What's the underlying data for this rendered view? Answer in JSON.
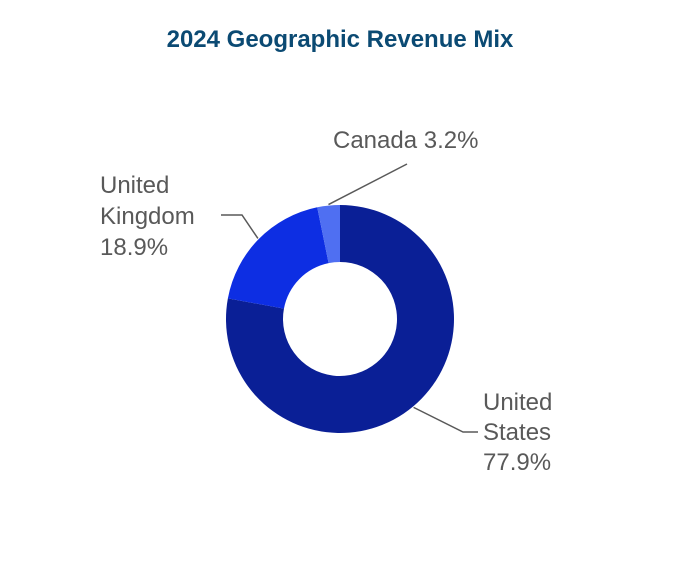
{
  "chart_data": {
    "type": "pie",
    "variant": "donut",
    "title": "2024 Geographic Revenue Mix",
    "slices": [
      {
        "name": "United States",
        "label_lines": [
          "United",
          "States",
          "77.9%"
        ],
        "value": 77.9,
        "color": "#0a1f96"
      },
      {
        "name": "United Kingdom",
        "label_lines": [
          "United",
          "Kingdom",
          "18.9%"
        ],
        "value": 18.9,
        "color": "#0d2ee3"
      },
      {
        "name": "Canada",
        "label_lines": [
          "Canada 3.2%"
        ],
        "value": 3.2,
        "color": "#4f6ff2"
      }
    ],
    "legend": "none",
    "title_color": "#0b4a73",
    "label_color": "#595959"
  }
}
